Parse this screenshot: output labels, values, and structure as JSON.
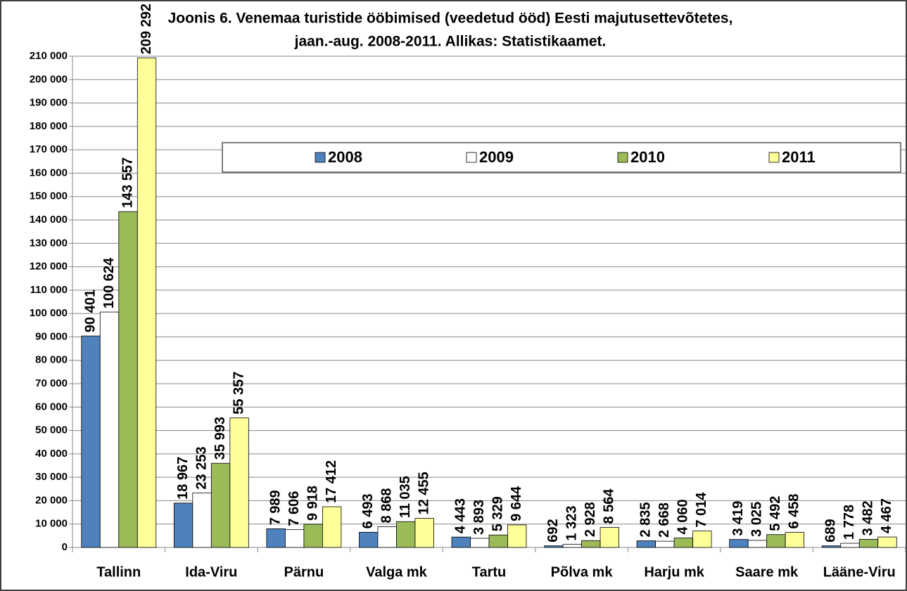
{
  "chart_data": {
    "type": "bar",
    "title": [
      "Joonis 6. Venemaa turistide ööbimised (veedetud ööd) Eesti majutusettevõtetes,",
      "jaan.-aug. 2008-2011. Allikas: Statistikaamet."
    ],
    "categories": [
      "Tallinn",
      "Ida-Viru",
      "Pärnu",
      "Valga mk",
      "Tartu",
      "Põlva mk",
      "Harju mk",
      "Saare mk",
      "Lääne-Viru"
    ],
    "series": [
      {
        "name": "2008",
        "color": "#4f81bd",
        "values": [
          90401,
          18967,
          7989,
          6493,
          4443,
          692,
          2835,
          3419,
          689
        ],
        "value_labels": [
          "90 401",
          "18 967",
          "7 989",
          "6 493",
          "4 443",
          "692",
          "2 835",
          "3 419",
          "689"
        ]
      },
      {
        "name": "2009",
        "color": "#ffffff",
        "values": [
          100624,
          23253,
          7606,
          8868,
          3893,
          1323,
          2668,
          3025,
          1778
        ],
        "value_labels": [
          "100 624",
          "23 253",
          "7 606",
          "8 868",
          "3 893",
          "1 323",
          "2 668",
          "3 025",
          "1 778"
        ]
      },
      {
        "name": "2010",
        "color": "#9bbb59",
        "values": [
          143557,
          35993,
          9918,
          11035,
          5329,
          2928,
          4060,
          5492,
          3482
        ],
        "value_labels": [
          "143 557",
          "35 993",
          "9 918",
          "11 035",
          "5 329",
          "2 928",
          "4 060",
          "5 492",
          "3 482"
        ]
      },
      {
        "name": "2011",
        "color": "#ffff99",
        "values": [
          209292,
          55357,
          17412,
          12455,
          9644,
          8564,
          7014,
          6458,
          4467
        ],
        "value_labels": [
          "209 292",
          "55 357",
          "17 412",
          "12 455",
          "9 644",
          "8 564",
          "7 014",
          "6 458",
          "4 467"
        ]
      }
    ],
    "ylim": [
      0,
      210000
    ],
    "yticks": [
      0,
      {
        "value": 10000,
        "label": "10 000"
      },
      {
        "value": 20000,
        "label": "20 000"
      },
      {
        "value": 30000,
        "label": "30 000"
      },
      {
        "value": 40000,
        "label": "40 000"
      },
      {
        "value": 50000,
        "label": "50 000"
      },
      {
        "value": 60000,
        "label": "60 000"
      },
      {
        "value": 70000,
        "label": "70 000"
      },
      {
        "value": 80000,
        "label": "80 000"
      },
      {
        "value": 90000,
        "label": "90 000"
      },
      {
        "value": 100000,
        "label": "100 000"
      },
      {
        "value": 110000,
        "label": "110 000"
      },
      {
        "value": 120000,
        "label": "120 000"
      },
      {
        "value": 130000,
        "label": "130 000"
      },
      {
        "value": 140000,
        "label": "140 000"
      },
      {
        "value": 150000,
        "label": "150 000"
      },
      {
        "value": 160000,
        "label": "160 000"
      },
      {
        "value": 170000,
        "label": "170 000"
      },
      {
        "value": 180000,
        "label": "180 000"
      },
      {
        "value": 190000,
        "label": "190 000"
      },
      {
        "value": 200000,
        "label": "200 000"
      },
      {
        "value": 210000,
        "label": "210 000"
      }
    ],
    "grid": true
  }
}
